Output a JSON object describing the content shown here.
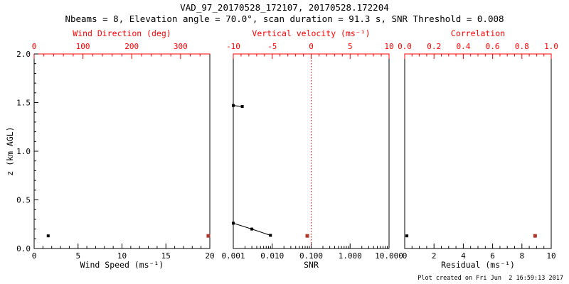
{
  "header": {
    "title": "VAD_97_20170528_172107, 20170528.172204",
    "subtitle": "Nbeams = 8, Elevation angle = 70.0°, scan duration = 91.3 s, SNR Threshold = 0.008"
  },
  "footer": {
    "created": "Plot created on Fri Jun  2 16:59:13 2017"
  },
  "colors": {
    "axis_red": "#ff0000",
    "point_red": "#b0392f",
    "frame_black": "#000000",
    "background": "#ffffff"
  },
  "chart_data": [
    {
      "type": "scatter",
      "panel": "wind",
      "xlabel_bottom": "Wind Speed (ms⁻¹)",
      "xlabel_top": "Wind Direction (deg)",
      "bottom_axis": {
        "min": 0,
        "max": 20,
        "ticks": [
          0,
          5,
          10,
          15,
          20
        ],
        "tick_labels": [
          "0",
          "5",
          "10",
          "15",
          "20"
        ],
        "minor_step": 1
      },
      "top_axis": {
        "min": 0,
        "max": 360,
        "ticks": [
          0,
          100,
          200,
          300
        ],
        "tick_labels": [
          "0",
          "100",
          "200",
          "300"
        ],
        "minor_step": 20
      },
      "y_axis": {
        "min": 0,
        "max": 2,
        "ticks": [
          0,
          0.5,
          1,
          1.5,
          2
        ],
        "tick_labels": [
          "0.0",
          "0.5",
          "1.0",
          "1.5",
          "2.0"
        ],
        "minor_step": 0.1,
        "label": "z (km AGL)",
        "show_labels": true
      },
      "series": [
        {
          "name": "wind-speed",
          "axis": "bottom",
          "color": "black",
          "marker": "square",
          "points": [
            {
              "x": 1.6,
              "z": 0.13
            }
          ]
        },
        {
          "name": "wind-direction",
          "axis": "top",
          "color": "red",
          "marker": "square",
          "points": [
            {
              "x": 357,
              "z": 0.13
            }
          ]
        }
      ]
    },
    {
      "type": "scatter",
      "panel": "snr",
      "xlabel_bottom": "SNR",
      "xlabel_top": "Vertical velocity (ms⁻¹)",
      "bottom_axis": {
        "scale": "log",
        "min": 0.001,
        "max": 10,
        "ticks": [
          0.001,
          0.01,
          0.1,
          1,
          10
        ],
        "tick_labels": [
          "0.001",
          "0.010",
          "0.100",
          "1.000",
          "10.000"
        ]
      },
      "top_axis": {
        "min": -10,
        "max": 10,
        "ticks": [
          -10,
          -5,
          0,
          5,
          10
        ],
        "tick_labels": [
          "-10",
          "-5",
          "0",
          "5",
          "10"
        ],
        "minor_step": 1
      },
      "reference_line": {
        "axis": "top",
        "value": 0,
        "style": "dotted",
        "color": "#ff0000"
      },
      "series": [
        {
          "name": "snr-profile",
          "axis": "bottom",
          "color": "black",
          "marker": "square",
          "line": true,
          "segments": [
            [
              {
                "x": 0.001,
                "z": 1.47
              },
              {
                "x": 0.0017,
                "z": 1.46
              }
            ],
            [
              {
                "x": 0.001,
                "z": 0.26
              },
              {
                "x": 0.003,
                "z": 0.2
              },
              {
                "x": 0.009,
                "z": 0.135
              }
            ]
          ]
        },
        {
          "name": "vertical-velocity",
          "axis": "top",
          "color": "red",
          "marker": "square",
          "points": [
            {
              "x": -0.5,
              "z": 0.13
            }
          ]
        }
      ]
    },
    {
      "type": "scatter",
      "panel": "residual",
      "xlabel_bottom": "Residual (ms⁻¹)",
      "xlabel_top": "Correlation",
      "bottom_axis": {
        "min": 0,
        "max": 10,
        "ticks": [
          0,
          2,
          4,
          6,
          8,
          10
        ],
        "tick_labels": [
          "0",
          "2",
          "4",
          "6",
          "8",
          "10"
        ],
        "minor_step": 0.5
      },
      "top_axis": {
        "min": 0,
        "max": 1,
        "ticks": [
          0,
          0.2,
          0.4,
          0.6,
          0.8,
          1
        ],
        "tick_labels": [
          "0.0",
          "0.2",
          "0.4",
          "0.6",
          "0.8",
          "1.0"
        ],
        "minor_step": 0.05
      },
      "series": [
        {
          "name": "residual",
          "axis": "bottom",
          "color": "black",
          "marker": "square",
          "points": [
            {
              "x": 0.15,
              "z": 0.13
            }
          ]
        },
        {
          "name": "correlation",
          "axis": "top",
          "color": "red",
          "marker": "square",
          "points": [
            {
              "x": 0.89,
              "z": 0.13
            }
          ]
        }
      ]
    }
  ]
}
